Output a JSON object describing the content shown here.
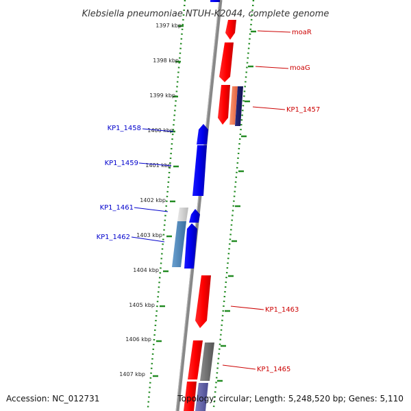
{
  "title": "Klebsiella pneumoniae NTUH-K2044, complete genome",
  "footer": {
    "accession": "Accession: NC_012731",
    "stats": "Topology: circular; Length: 5,248,520 bp; Genes: 5,110"
  },
  "colors": {
    "forward_gene": "#ff0000",
    "reverse_gene": "#0000ee",
    "forward_label": "#cc0000",
    "reverse_label": "#0000cc",
    "backbone": "#888888",
    "tick_dots": "#228b22"
  },
  "axis": {
    "unit": "kbp",
    "ticks": [
      "1397 kbp",
      "1398 kbp",
      "1399 kbp",
      "1400 kbp",
      "1401 kbp",
      "1402 kbp",
      "1403 kbp",
      "1404 kbp",
      "1405 kbp",
      "1406 kbp",
      "1407 kbp"
    ]
  },
  "gene_labels": {
    "forward": [
      "moaR",
      "moaG",
      "KP1_1457",
      "KP1_1463",
      "KP1_1465"
    ],
    "reverse": [
      "KP1_1458",
      "KP1_1459",
      "KP1_1461",
      "KP1_1462"
    ]
  }
}
